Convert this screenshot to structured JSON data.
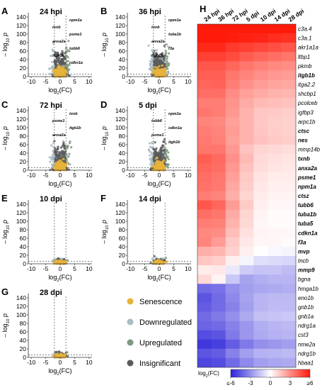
{
  "panels": [
    {
      "letter": "A",
      "title": "24 hpi",
      "genes": [
        "npm1a",
        "txnb",
        "psme1",
        "anxa2a",
        "tubb6",
        "itgb1b",
        "cdkn1a"
      ]
    },
    {
      "letter": "B",
      "title": "36 hpi",
      "genes": [
        "npm1a",
        "txnb",
        "tuba1b",
        "anxa2a",
        "f3a",
        "itgb1b"
      ]
    },
    {
      "letter": "C",
      "title": "72 hpi",
      "genes": [
        "txnb",
        "psme1",
        "itgb1b",
        "anxa2a"
      ]
    },
    {
      "letter": "D",
      "title": "5 dpi",
      "genes": [
        "npm1a",
        "tubb6",
        "cdkn1a",
        "psme1",
        "itgb1b"
      ]
    },
    {
      "letter": "E",
      "title": "10 dpi",
      "genes": []
    },
    {
      "letter": "F",
      "title": "14 dpi",
      "genes": []
    },
    {
      "letter": "G",
      "title": "28 dpi",
      "genes": []
    }
  ],
  "axes": {
    "y_ticks": [
      "0",
      "20",
      "40",
      "60",
      "80",
      "100",
      "120",
      "140"
    ],
    "x_ticks": [
      "-10",
      "-5",
      "0",
      "5",
      "10"
    ],
    "ylabel_prefix": "– log",
    "ylabel_sub": "10",
    "ylabel_var": " p",
    "xlabel_pre": "log",
    "xlabel_sub": "2",
    "xlabel_post": "(FC)"
  },
  "legend": [
    {
      "label": "Senescence",
      "color": "#e8b33a"
    },
    {
      "label": "Downregulated",
      "color": "#a9bcc4"
    },
    {
      "label": "Upregulated",
      "color": "#7f9a7e"
    },
    {
      "label": "Insignificant",
      "color": "#5a5a5a"
    }
  ],
  "heatmap": {
    "letter": "H",
    "columns": [
      "24 hpi",
      "36 hpi",
      "72 hpi",
      "5 dpi",
      "10 dpi",
      "14 dpi",
      "28 dpi"
    ],
    "rows": [
      {
        "gene": "c3a.4",
        "bold": false
      },
      {
        "gene": "c3a.1",
        "bold": false
      },
      {
        "gene": "akr1a1a",
        "bold": false
      },
      {
        "gene": "ltbp1",
        "bold": false
      },
      {
        "gene": "pkmb",
        "bold": false
      },
      {
        "gene": "itgb1b",
        "bold": true
      },
      {
        "gene": "itga2.2",
        "bold": false
      },
      {
        "gene": "shcbp1",
        "bold": false
      },
      {
        "gene": "pcolceb",
        "bold": false
      },
      {
        "gene": "igfbp3",
        "bold": false
      },
      {
        "gene": "arpc1b",
        "bold": false
      },
      {
        "gene": "ctsc",
        "bold": true
      },
      {
        "gene": "nes",
        "bold": true
      },
      {
        "gene": "mmp14b",
        "bold": false
      },
      {
        "gene": "txnb",
        "bold": true
      },
      {
        "gene": "anxa2a",
        "bold": true
      },
      {
        "gene": "psme1",
        "bold": true
      },
      {
        "gene": "npm1a",
        "bold": true
      },
      {
        "gene": "ctsz",
        "bold": true
      },
      {
        "gene": "tubb6",
        "bold": true
      },
      {
        "gene": "tuba1b",
        "bold": true
      },
      {
        "gene": "tuba5",
        "bold": true
      },
      {
        "gene": "cdkn1a",
        "bold": true
      },
      {
        "gene": "f3a",
        "bold": true
      },
      {
        "gene": "mvp",
        "bold": true
      },
      {
        "gene": "tncb",
        "bold": false
      },
      {
        "gene": "mmp9",
        "bold": true
      },
      {
        "gene": "bgna",
        "bold": false
      },
      {
        "gene": "hmga1b",
        "bold": false
      },
      {
        "gene": "eno1b",
        "bold": false
      },
      {
        "gene": "gnb1b",
        "bold": false
      },
      {
        "gene": "gnb1a",
        "bold": false
      },
      {
        "gene": "ndrg1a",
        "bold": false
      },
      {
        "gene": "cst3",
        "bold": false
      },
      {
        "gene": "nme2a",
        "bold": false
      },
      {
        "gene": "ndrg1b",
        "bold": false
      },
      {
        "gene": "hbaa1",
        "bold": false
      }
    ],
    "values": [
      [
        6,
        6,
        6,
        6,
        6,
        6,
        6
      ],
      [
        6,
        6,
        5.9,
        5.8,
        5.7,
        5.5,
        5.4
      ],
      [
        5.6,
        5.6,
        5.2,
        5,
        4.8,
        4.6,
        4.4
      ],
      [
        5,
        5,
        4.7,
        4.3,
        4,
        3.8,
        3.6
      ],
      [
        4.4,
        4.4,
        4,
        3.6,
        3.3,
        3.1,
        3
      ],
      [
        4.2,
        4.2,
        3.6,
        3.2,
        2.9,
        2.7,
        2.6
      ],
      [
        4,
        4.1,
        3.4,
        2.9,
        2.6,
        2.4,
        2.3
      ],
      [
        3.8,
        3.8,
        3,
        2.5,
        2.2,
        2,
        1.9
      ],
      [
        3.4,
        3.4,
        2.8,
        2.2,
        1.8,
        1.7,
        1.6
      ],
      [
        3.6,
        3.4,
        2.7,
        2,
        1.5,
        1.4,
        1.3
      ],
      [
        3.2,
        3.1,
        2.5,
        2,
        1.5,
        1.3,
        1.2
      ],
      [
        3.4,
        3.2,
        2.6,
        2,
        1.5,
        1.3,
        1.2
      ],
      [
        3.5,
        3.3,
        2.5,
        2,
        1.6,
        1.4,
        1.3
      ],
      [
        3.6,
        3.6,
        2.7,
        1.6,
        1.1,
        1,
        0.9
      ],
      [
        4.2,
        3.9,
        2.9,
        1.8,
        1,
        0.8,
        0.7
      ],
      [
        4,
        3.8,
        2.7,
        1.6,
        0.9,
        0.7,
        0.6
      ],
      [
        3.8,
        3.6,
        2.5,
        1.4,
        0.7,
        0.5,
        0.5
      ],
      [
        3.7,
        3.5,
        2.3,
        1.3,
        0.6,
        0.4,
        0.4
      ],
      [
        3.4,
        3.2,
        2.1,
        1.1,
        0.5,
        0.3,
        0.3
      ],
      [
        4.4,
        4,
        2.6,
        1.4,
        0.4,
        0.2,
        0.2
      ],
      [
        3.8,
        3.6,
        2.2,
        1.1,
        0.3,
        0.1,
        0.1
      ],
      [
        3.4,
        3.3,
        2,
        1,
        0.2,
        0.1,
        0.1
      ],
      [
        3.1,
        3,
        1.7,
        0.8,
        0.3,
        0.2,
        0.2
      ],
      [
        3.2,
        2.6,
        1.4,
        0.6,
        0.2,
        0.2,
        0.1
      ],
      [
        2.1,
        1.9,
        1.2,
        0.4,
        0,
        -0.2,
        -0.3
      ],
      [
        1.5,
        1.3,
        0.4,
        -0.3,
        -0.9,
        -1,
        -1.1
      ],
      [
        0.5,
        0.6,
        -0.6,
        -1.4,
        -1.6,
        -1.6,
        -1.8
      ],
      [
        1,
        0.3,
        -1.5,
        -2.5,
        -2.2,
        -2,
        -2
      ],
      [
        -4,
        -3.8,
        -3,
        -2.6,
        -2.4,
        -2.3,
        -2.2
      ],
      [
        -4.6,
        -4,
        -3.2,
        -2.5,
        -2,
        -1.9,
        -1.9
      ],
      [
        -4.4,
        -4,
        -3.4,
        -2.6,
        -2,
        -1.8,
        -1.8
      ],
      [
        -4,
        -3.6,
        -3,
        -2.3,
        -1.7,
        -1.6,
        -1.5
      ],
      [
        -4.2,
        -4,
        -3.4,
        -2.8,
        -2.2,
        -2,
        -1.9
      ],
      [
        -4.8,
        -4.6,
        -3.6,
        -2.8,
        -2.3,
        -2.1,
        -2
      ],
      [
        -5.4,
        -5.2,
        -4.4,
        -3.6,
        -3,
        -2.8,
        -2.6
      ],
      [
        -4.6,
        -4.4,
        -3.4,
        -2.6,
        -2.1,
        -2,
        -1.9
      ],
      [
        -5,
        -4.8,
        -4,
        -3.2,
        -2.6,
        -2.4,
        -2.3
      ]
    ],
    "colorbar": {
      "label_pre": "log",
      "label_sub": "2",
      "label_post": "(FC)",
      "ticks": [
        "≤-6",
        "-3",
        "0",
        "3",
        "≥6"
      ],
      "low_color": "#2b21d9",
      "mid_color": "#ffffff",
      "high_color": "#ff1a0a"
    }
  }
}
